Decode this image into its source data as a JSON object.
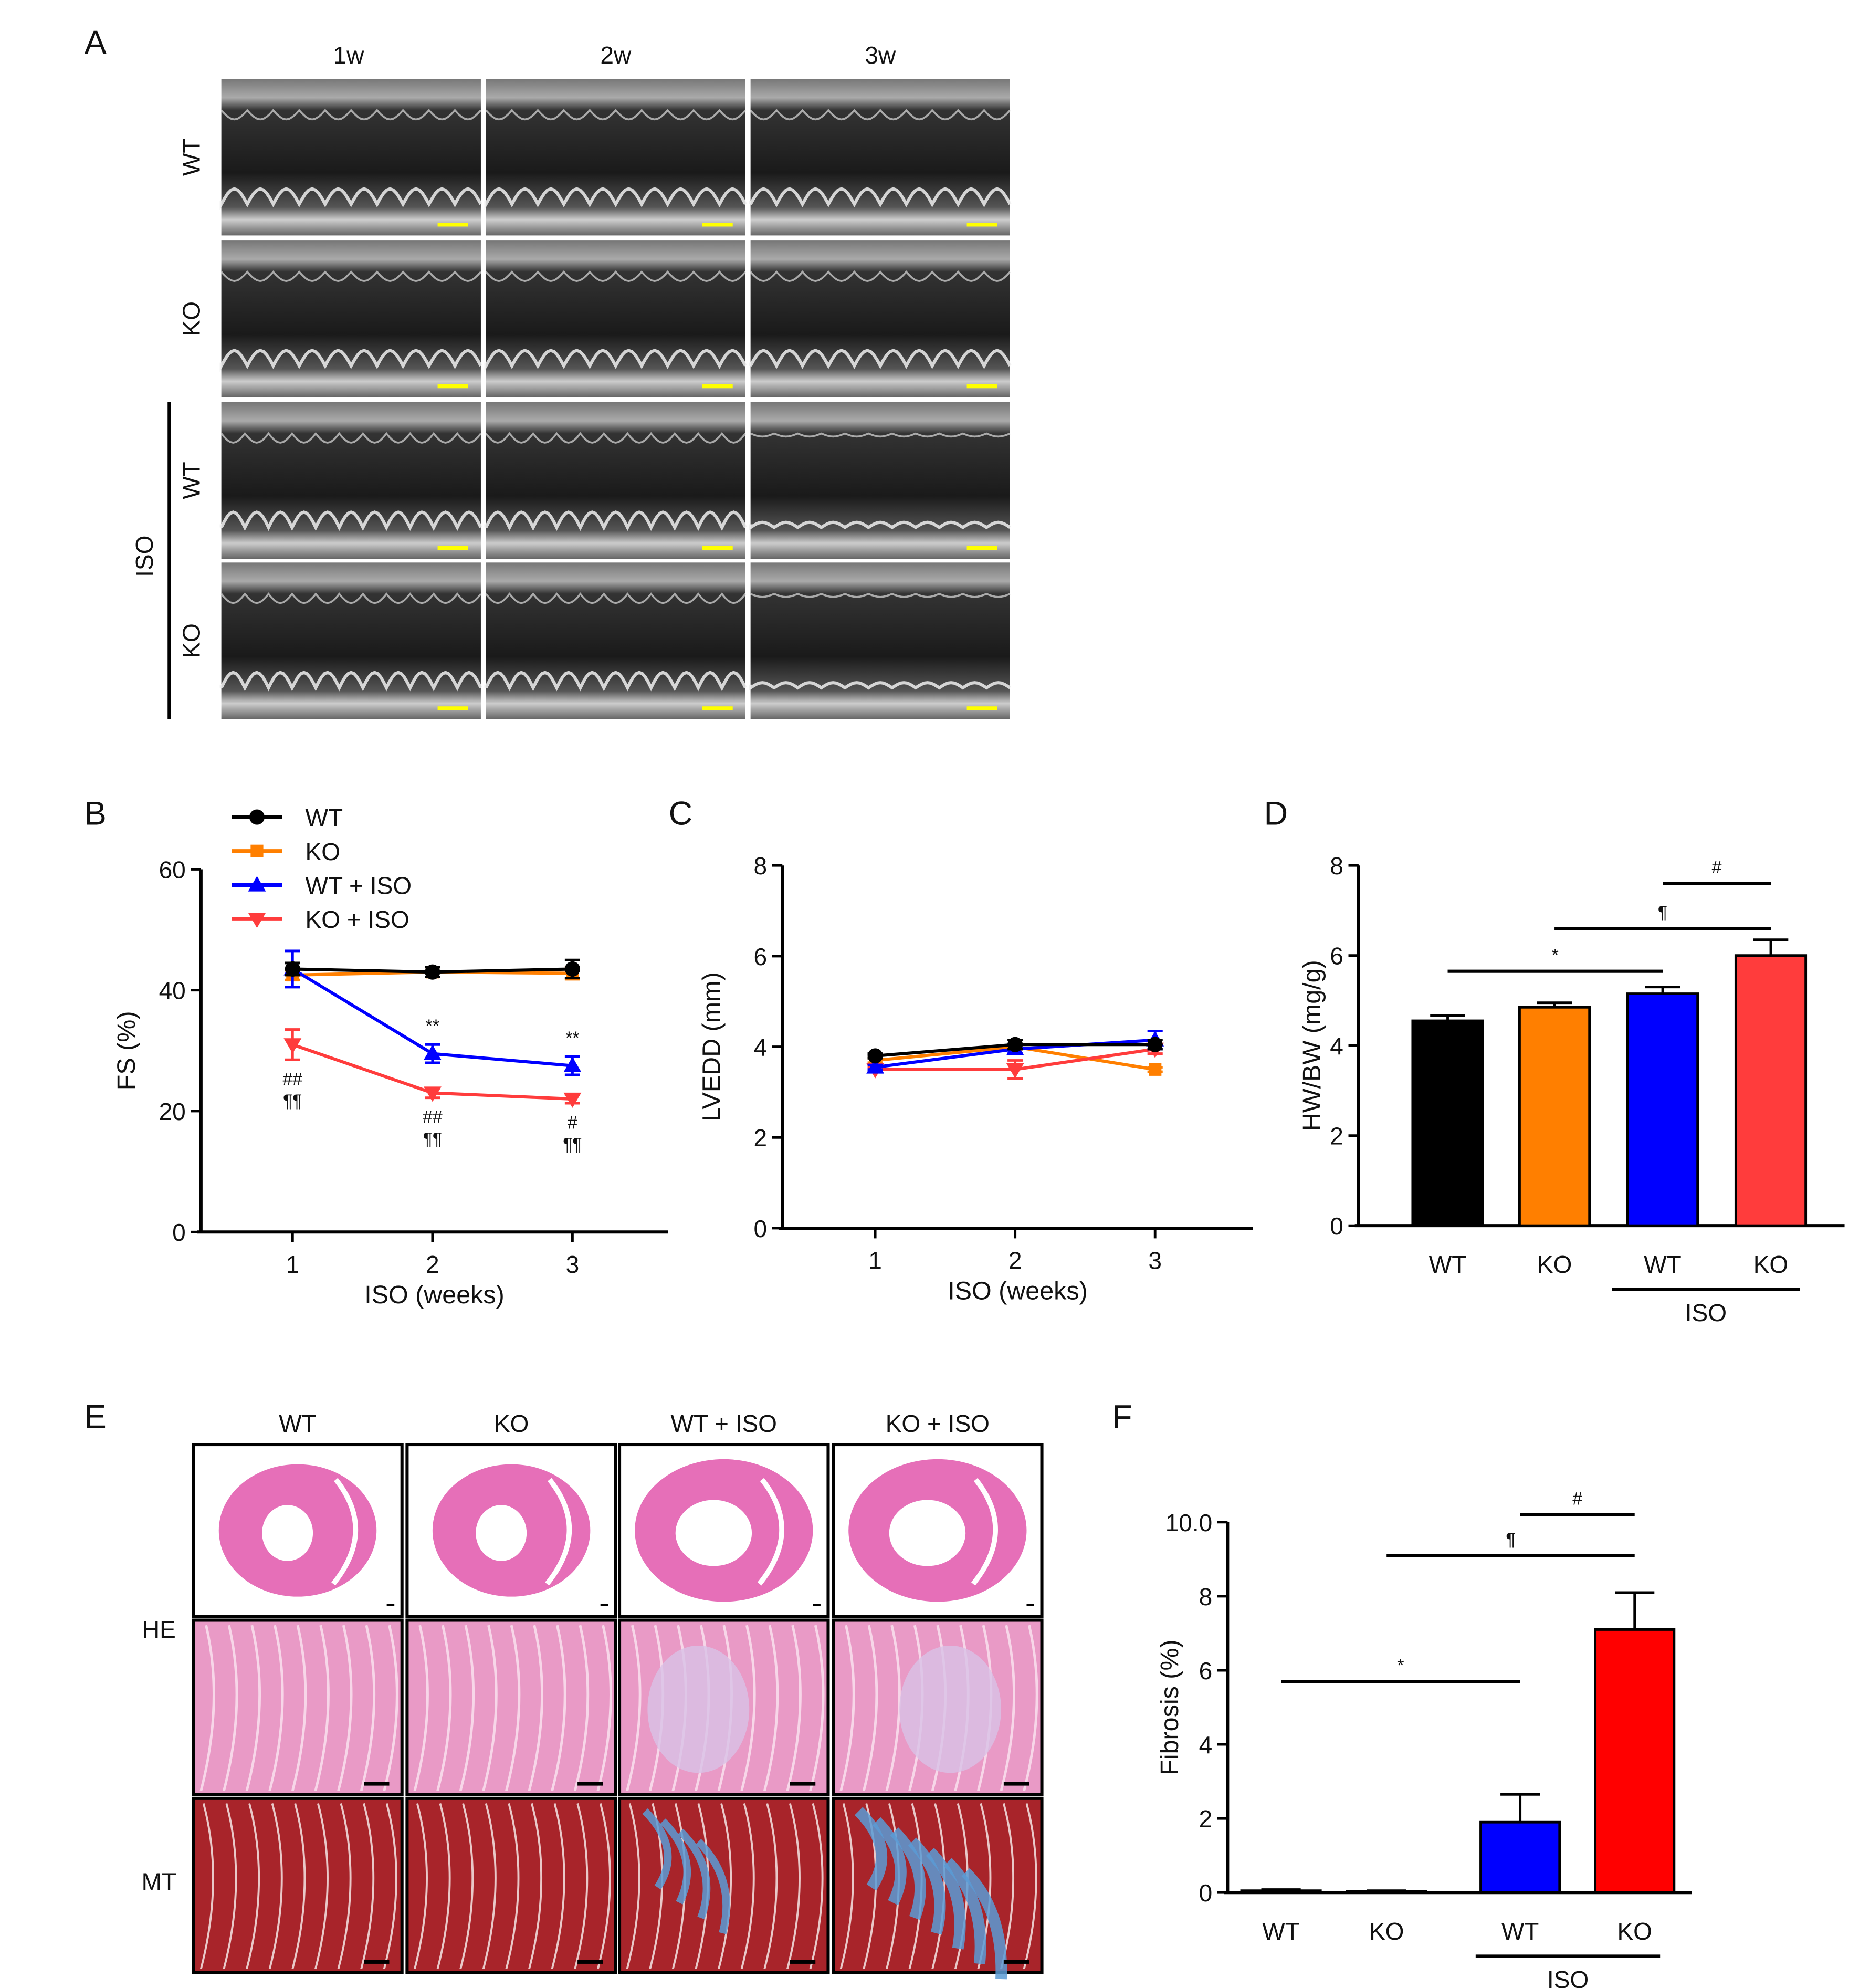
{
  "colors": {
    "WT": "#000000",
    "KO": "#ff7f00",
    "WT + ISO": "#0000ff",
    "KO + ISO": "#ff3c3c",
    "fibrosis_KO_ISO": "#ff0000",
    "scale_bar_echo": "#ffff00"
  },
  "panel_a": {
    "label": "A",
    "columns": [
      "1w",
      "2w",
      "3w"
    ],
    "rows": [
      "WT",
      "KO",
      "WT",
      "KO"
    ],
    "group_label": "ISO"
  },
  "panel_e": {
    "label": "E",
    "columns": [
      "WT",
      "KO",
      "WT + ISO",
      "KO + ISO"
    ],
    "rows": [
      "HE",
      "MT"
    ]
  },
  "chart_data": [
    {
      "panel": "B",
      "label": "B",
      "type": "line",
      "xlabel": "ISO (weeks)",
      "ylabel": "FS (%)",
      "x": [
        1,
        2,
        3
      ],
      "ylim": [
        0,
        60
      ],
      "yticks": [
        0,
        20,
        40,
        60
      ],
      "legend": "top-left",
      "grid": false,
      "series": [
        {
          "name": "WT",
          "marker": "circle",
          "values": [
            43.5,
            43,
            43.5
          ],
          "err": [
            1,
            0.8,
            1.5
          ]
        },
        {
          "name": "KO",
          "marker": "square",
          "values": [
            42.5,
            43,
            42.8
          ],
          "err": [
            0.8,
            0.8,
            1
          ]
        },
        {
          "name": "WT + ISO",
          "marker": "triangle-up",
          "values": [
            43.5,
            29.5,
            27.5
          ],
          "err": [
            3,
            1.5,
            1.5
          ]
        },
        {
          "name": "KO + ISO",
          "marker": "triangle-down",
          "values": [
            31,
            23,
            22
          ],
          "err": [
            2.5,
            0.8,
            0.7
          ]
        }
      ],
      "annotations": [
        {
          "x": 2,
          "series": "WT + ISO",
          "text": "**"
        },
        {
          "x": 3,
          "series": "WT + ISO",
          "text": "**"
        },
        {
          "x": 1,
          "series": "KO + ISO",
          "text": [
            "##",
            "¶¶"
          ]
        },
        {
          "x": 2,
          "series": "KO + ISO",
          "text": [
            "##",
            "¶¶"
          ]
        },
        {
          "x": 3,
          "series": "KO + ISO",
          "text": [
            "#",
            "¶¶"
          ]
        }
      ]
    },
    {
      "panel": "C",
      "label": "C",
      "type": "line",
      "xlabel": "ISO (weeks)",
      "ylabel": "LVEDD (mm)",
      "x": [
        1,
        2,
        3
      ],
      "ylim": [
        0,
        8
      ],
      "yticks": [
        0,
        2,
        4,
        6,
        8
      ],
      "grid": false,
      "series": [
        {
          "name": "KO",
          "marker": "square",
          "values": [
            3.7,
            4.0,
            3.5
          ],
          "err": [
            0.05,
            0.05,
            0.05
          ]
        },
        {
          "name": "KO + ISO",
          "marker": "triangle-down",
          "values": [
            3.5,
            3.5,
            3.95
          ],
          "err": [
            0.05,
            0.2,
            0.1
          ]
        },
        {
          "name": "WT + ISO",
          "marker": "triangle-up",
          "values": [
            3.55,
            3.95,
            4.15
          ],
          "err": [
            0.05,
            0.1,
            0.2
          ]
        },
        {
          "name": "WT",
          "marker": "circle",
          "values": [
            3.8,
            4.05,
            4.05
          ],
          "err": [
            0.05,
            0.1,
            0.1
          ]
        }
      ]
    },
    {
      "panel": "D",
      "label": "D",
      "type": "bar",
      "ylabel": "HW/BW (mg/g)",
      "ylim": [
        0,
        8
      ],
      "yticks": [
        0,
        2,
        4,
        6,
        8
      ],
      "categories": [
        "WT",
        "KO",
        "WT",
        "KO"
      ],
      "group_label": "ISO",
      "values": [
        4.55,
        4.85,
        5.15,
        6.0
      ],
      "err": [
        0.12,
        0.1,
        0.15,
        0.35
      ],
      "bar_colors": [
        "#000000",
        "#ff7f00",
        "#0000ff",
        "#ff3c3c"
      ],
      "significance": [
        {
          "from": 0,
          "to": 2,
          "text": "*",
          "y": 5.65
        },
        {
          "from": 1,
          "to": 3,
          "text": "¶",
          "y": 6.6
        },
        {
          "from": 2,
          "to": 3,
          "text": "#",
          "y": 7.6
        }
      ]
    },
    {
      "panel": "F",
      "label": "F",
      "type": "bar",
      "ylabel": "Fibrosis (%)",
      "ylim": [
        0,
        10
      ],
      "yticks": [
        0,
        2,
        4,
        6,
        8,
        10
      ],
      "ytick_labels": [
        "0",
        "2",
        "4",
        "6",
        "8",
        "10.0"
      ],
      "categories": [
        "WT",
        "KO",
        "WT",
        "KO"
      ],
      "group_label": "ISO",
      "values": [
        0.05,
        0.03,
        1.9,
        7.1
      ],
      "err": [
        0.03,
        0.02,
        0.75,
        1.0
      ],
      "bar_colors": [
        "#000000",
        "#000000",
        "#0000ff",
        "#ff0000"
      ],
      "significance": [
        {
          "from": 0,
          "to": 2,
          "text": "*",
          "y": 5.7
        },
        {
          "from": 1,
          "to": 3,
          "text": "¶",
          "y": 9.1
        },
        {
          "from": 2,
          "to": 3,
          "text": "#",
          "y": 10.2
        }
      ]
    }
  ]
}
